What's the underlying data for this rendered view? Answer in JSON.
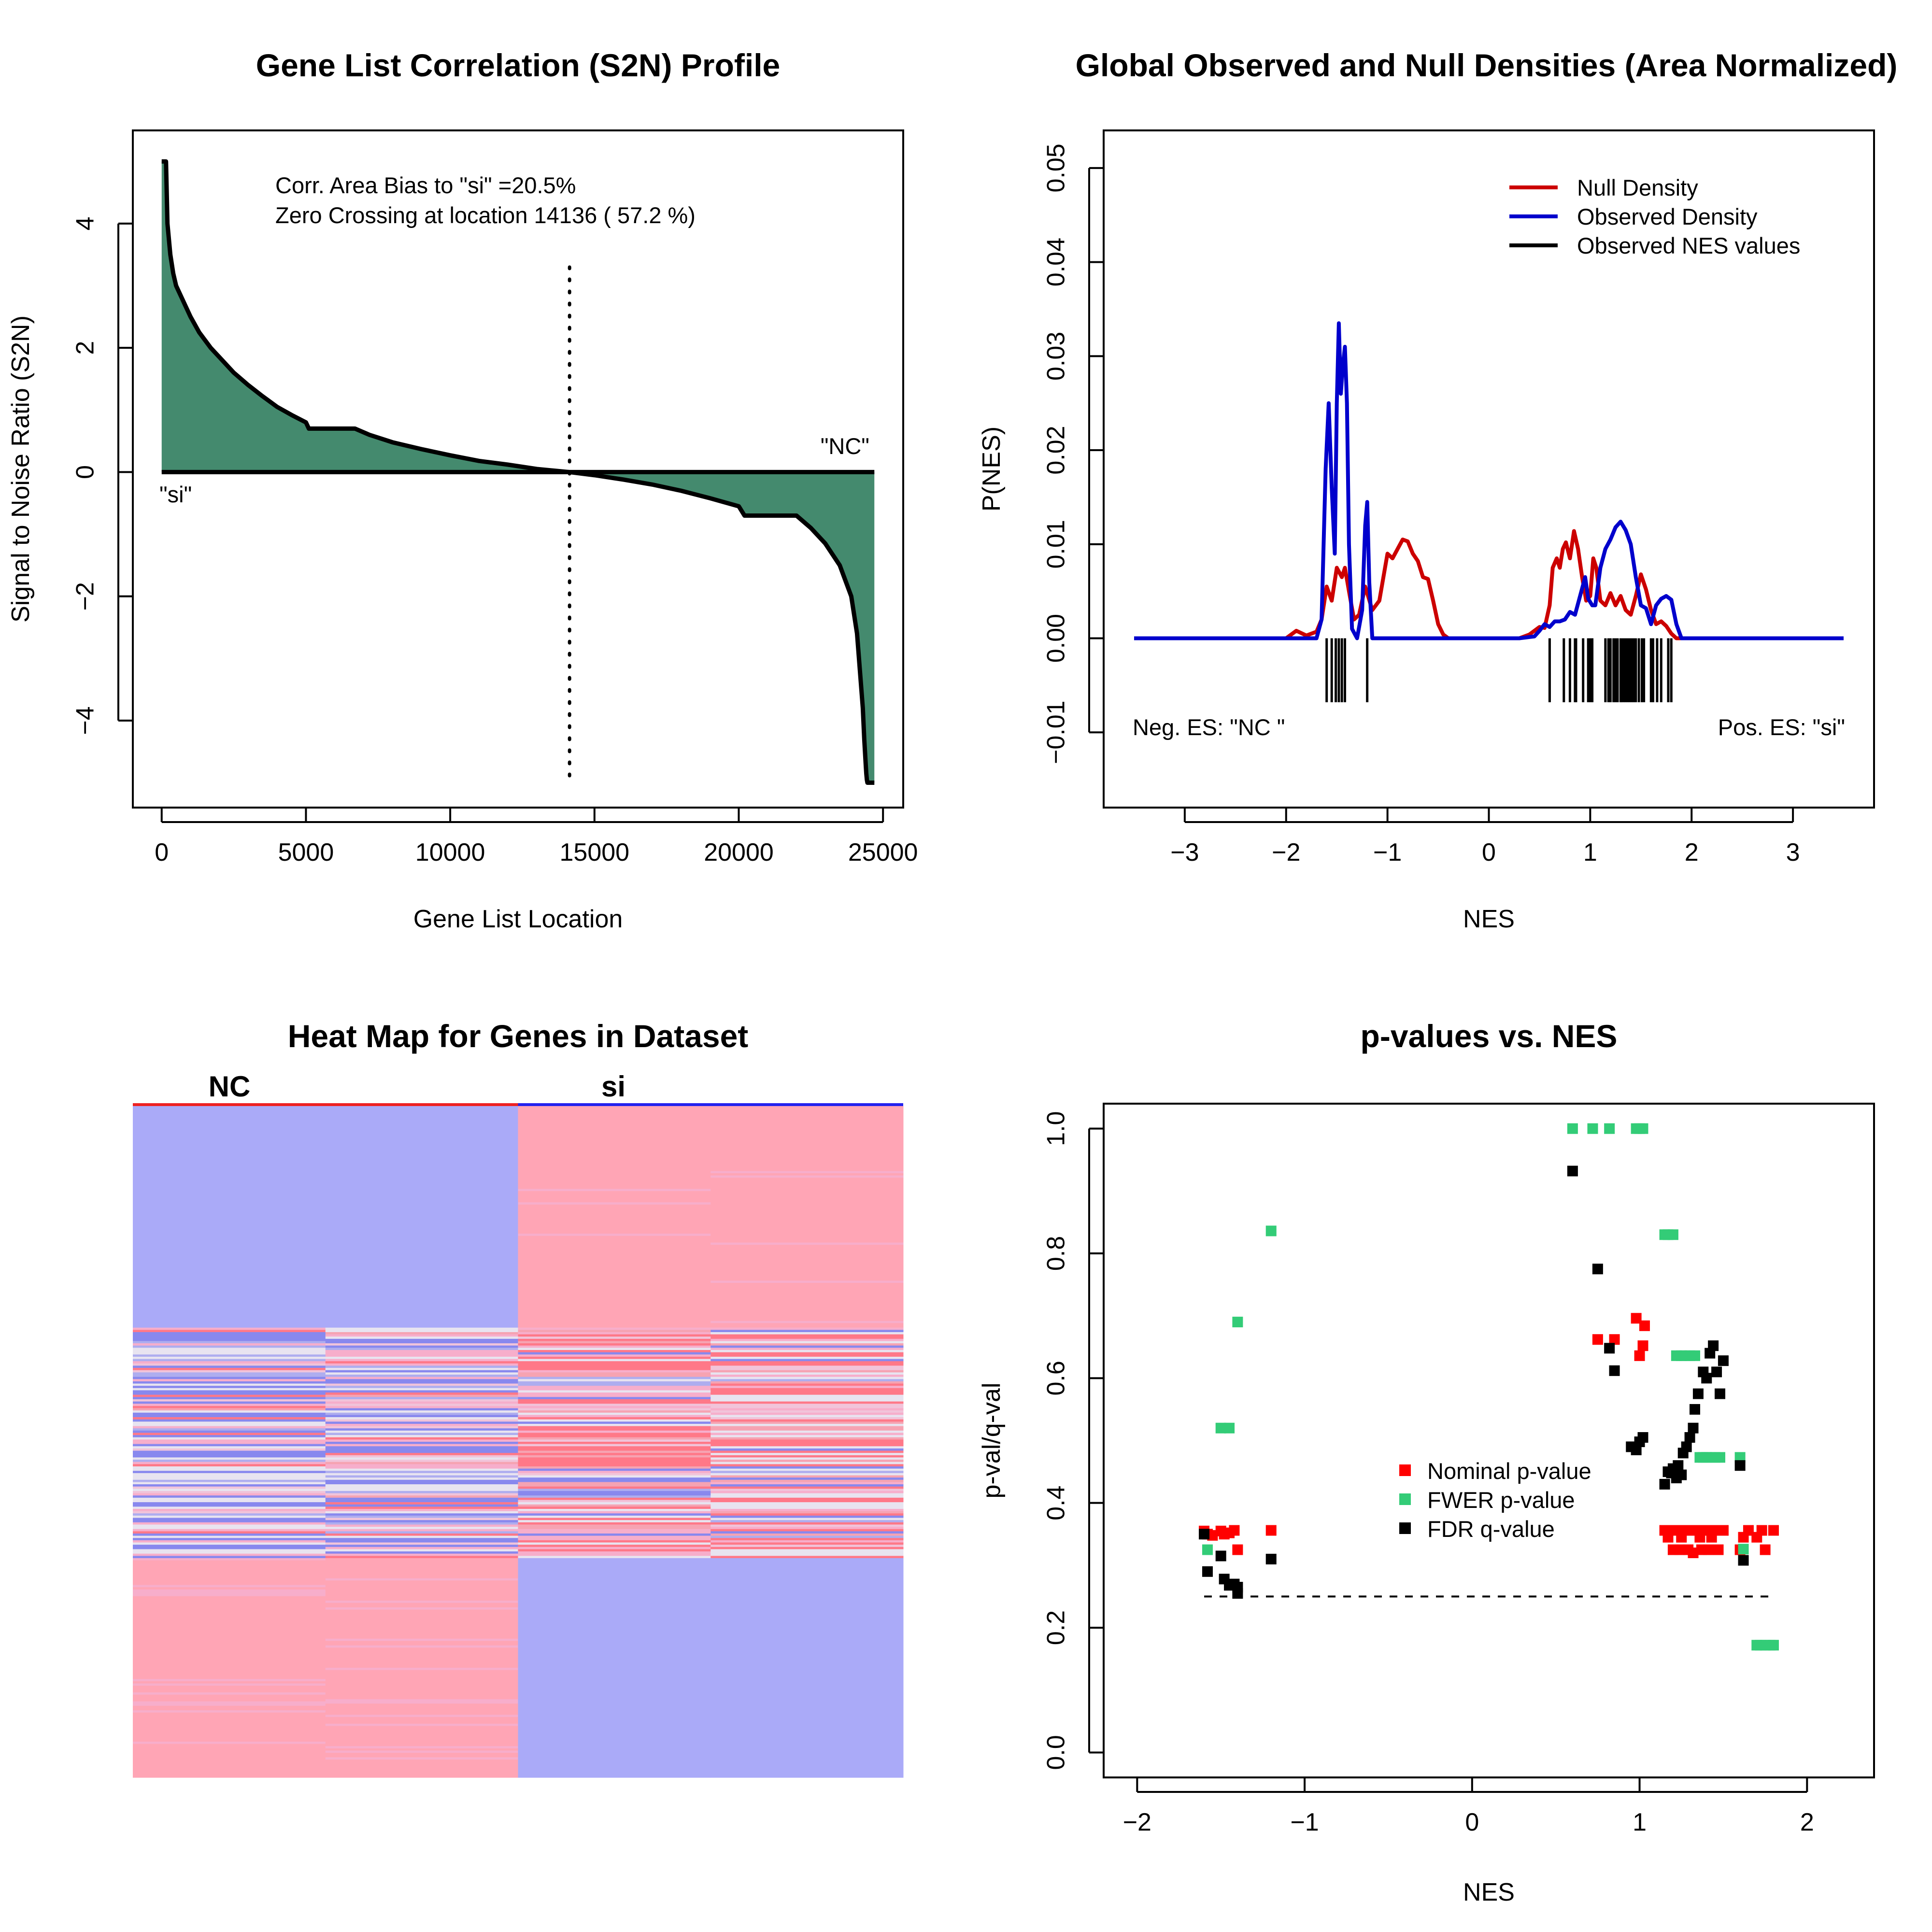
{
  "chart_data": [
    {
      "type": "area",
      "title": "Gene List Correlation (S2N) Profile",
      "xlabel": "Gene List Location",
      "ylabel": "Signal to Noise Ratio (S2N)",
      "xlim": [
        -1000,
        25700
      ],
      "ylim": [
        -5.4,
        5.5
      ],
      "xticks": [
        0,
        5000,
        10000,
        15000,
        20000,
        25000
      ],
      "xtick_labels": [
        "0",
        "5000",
        "10000",
        "15000",
        "20000",
        "25000"
      ],
      "yticks": [
        -4,
        -2,
        0,
        2,
        4
      ],
      "ytick_labels": [
        "−4",
        "−2",
        "0",
        "2",
        "4"
      ],
      "fill_color": "#448a6e",
      "x": [
        0,
        150,
        200,
        300,
        400,
        500,
        700,
        1000,
        1300,
        1700,
        2000,
        2500,
        3000,
        3500,
        4000,
        4500,
        5000,
        5100,
        6700,
        7200,
        8000,
        9000,
        10000,
        11000,
        12000,
        13000,
        14136,
        15000,
        16000,
        17000,
        18000,
        19000,
        20000,
        20200,
        22000,
        22500,
        23000,
        23500,
        23900,
        24100,
        24200,
        24300,
        24350,
        24400,
        24420,
        24440,
        24460,
        24480,
        24700
      ],
      "y": [
        5.0,
        5.0,
        4.0,
        3.5,
        3.2,
        3.0,
        2.8,
        2.5,
        2.25,
        2.0,
        1.85,
        1.6,
        1.4,
        1.22,
        1.05,
        0.92,
        0.8,
        0.7,
        0.7,
        0.6,
        0.48,
        0.37,
        0.27,
        0.18,
        0.12,
        0.05,
        0.0,
        -0.05,
        -0.12,
        -0.2,
        -0.3,
        -0.42,
        -0.55,
        -0.7,
        -0.7,
        -0.9,
        -1.15,
        -1.5,
        -2.0,
        -2.6,
        -3.2,
        -3.8,
        -4.3,
        -4.7,
        -4.85,
        -4.95,
        -5.0,
        -5.0,
        -5.0
      ],
      "zero_crossing": 14136,
      "dotted_line_top": 3.3,
      "dotted_line_bottom": -5.0,
      "annotations": [
        "Corr. Area Bias to \"si\" =20.5%",
        "Zero Crossing at location  14136  ( 57.2  %)"
      ],
      "label_left": "\"si\"",
      "label_right": "\"NC\""
    },
    {
      "type": "line",
      "title": "Global Observed and Null Densities (Area Normalized)",
      "xlabel": "NES",
      "ylabel": "P(NES)",
      "xlim": [
        -3.8,
        3.8
      ],
      "ylim": [
        -0.018,
        0.054
      ],
      "xticks": [
        -3,
        -2,
        -1,
        0,
        1,
        2,
        3
      ],
      "xtick_labels": [
        "−3",
        "−2",
        "−1",
        "0",
        "1",
        "2",
        "3"
      ],
      "yticks": [
        -0.01,
        0.0,
        0.01,
        0.02,
        0.03,
        0.04,
        0.05
      ],
      "ytick_labels": [
        "−0.01",
        "0.00",
        "0.01",
        "0.02",
        "0.03",
        "0.04",
        "0.05"
      ],
      "legend_position": "top-right",
      "series": [
        {
          "name": "Null Density",
          "color": "#cc0000",
          "x": [
            -3.5,
            -2.0,
            -1.9,
            -1.8,
            -1.7,
            -1.65,
            -1.6,
            -1.55,
            -1.5,
            -1.45,
            -1.42,
            -1.38,
            -1.33,
            -1.28,
            -1.22,
            -1.15,
            -1.08,
            -1.0,
            -0.95,
            -0.9,
            -0.85,
            -0.8,
            -0.75,
            -0.7,
            -0.65,
            -0.6,
            -0.55,
            -0.5,
            -0.45,
            -0.4,
            -0.35,
            -0.3,
            0.3,
            0.4,
            0.5,
            0.55,
            0.6,
            0.63,
            0.67,
            0.7,
            0.73,
            0.76,
            0.8,
            0.84,
            0.88,
            0.92,
            0.96,
            1.0,
            1.03,
            1.06,
            1.1,
            1.15,
            1.2,
            1.25,
            1.3,
            1.35,
            1.4,
            1.45,
            1.5,
            1.55,
            1.6,
            1.65,
            1.7,
            1.75,
            1.8,
            1.85,
            3.5
          ],
          "y": [
            0.0,
            0.0,
            0.0008,
            0.0003,
            0.0007,
            0.002,
            0.0055,
            0.004,
            0.0075,
            0.0065,
            0.0075,
            0.005,
            0.002,
            0.0025,
            0.0055,
            0.003,
            0.004,
            0.009,
            0.0085,
            0.0095,
            0.0105,
            0.0103,
            0.009,
            0.0082,
            0.0065,
            0.0063,
            0.004,
            0.0015,
            0.0004,
            0.0,
            0.0,
            0.0,
            0.0,
            0.0004,
            0.0012,
            0.0011,
            0.0035,
            0.0075,
            0.0085,
            0.0075,
            0.0095,
            0.0102,
            0.0085,
            0.0114,
            0.0095,
            0.0065,
            0.004,
            0.0045,
            0.0085,
            0.0075,
            0.004,
            0.0035,
            0.0048,
            0.0035,
            0.0045,
            0.003,
            0.0025,
            0.0045,
            0.0068,
            0.0052,
            0.003,
            0.0015,
            0.0018,
            0.0013,
            0.0005,
            0.0,
            0.0
          ]
        },
        {
          "name": "Observed Density",
          "color": "#0000cc",
          "x": [
            -3.5,
            -1.7,
            -1.65,
            -1.61,
            -1.58,
            -1.55,
            -1.52,
            -1.5,
            -1.48,
            -1.46,
            -1.44,
            -1.42,
            -1.4,
            -1.38,
            -1.35,
            -1.3,
            -1.25,
            -1.22,
            -1.2,
            -1.18,
            -1.15,
            -1.0,
            0.3,
            0.45,
            0.5,
            0.55,
            0.6,
            0.65,
            0.7,
            0.75,
            0.8,
            0.85,
            0.9,
            0.95,
            0.98,
            1.02,
            1.05,
            1.1,
            1.15,
            1.2,
            1.25,
            1.3,
            1.35,
            1.4,
            1.45,
            1.5,
            1.55,
            1.6,
            1.65,
            1.7,
            1.75,
            1.8,
            1.85,
            1.9,
            3.5
          ],
          "y": [
            0.0,
            0.0,
            0.002,
            0.018,
            0.025,
            0.016,
            0.009,
            0.025,
            0.0335,
            0.026,
            0.029,
            0.031,
            0.025,
            0.01,
            0.001,
            0.0,
            0.003,
            0.012,
            0.0145,
            0.006,
            0.0,
            0.0,
            0.0,
            0.0002,
            0.0008,
            0.0015,
            0.0012,
            0.0018,
            0.0018,
            0.002,
            0.0028,
            0.0025,
            0.0045,
            0.0065,
            0.0042,
            0.0035,
            0.0035,
            0.0075,
            0.0095,
            0.0105,
            0.0118,
            0.0124,
            0.0115,
            0.01,
            0.0065,
            0.0035,
            0.0032,
            0.0015,
            0.0035,
            0.0042,
            0.0045,
            0.0041,
            0.0015,
            0.0,
            0.0
          ]
        },
        {
          "name": "Observed NES values",
          "color": "#000000",
          "rug": [
            -1.6,
            -1.55,
            -1.51,
            -1.48,
            -1.45,
            -1.42,
            -1.2,
            0.6,
            0.74,
            0.8,
            0.85,
            0.86,
            0.93,
            0.98,
            1.0,
            1.02,
            1.15,
            1.18,
            1.2,
            1.23,
            1.25,
            1.27,
            1.3,
            1.31,
            1.33,
            1.35,
            1.37,
            1.39,
            1.41,
            1.43,
            1.45,
            1.48,
            1.51,
            1.53,
            1.6,
            1.62,
            1.66,
            1.7,
            1.77,
            1.8
          ],
          "rug_top": 0.0,
          "rug_bottom": -0.0068
        }
      ],
      "annotations": [
        "Neg. ES: \"NC \"",
        "Pos. ES: \"si\""
      ]
    },
    {
      "type": "heatmap",
      "title": "Heat Map for Genes in Dataset",
      "column_groups": [
        "NC",
        "si"
      ],
      "group_colors": [
        "#ee2222",
        "#2222ee"
      ],
      "columns": 4,
      "high_color": "#ff7788",
      "low_color": "#7777ee"
    },
    {
      "type": "scatter",
      "title": "p-values vs. NES",
      "xlabel": "NES",
      "ylabel": "p-val/q-val",
      "xlim": [
        -2.2,
        2.4
      ],
      "ylim": [
        -0.04,
        1.04
      ],
      "xticks": [
        -2,
        -1,
        0,
        1,
        2
      ],
      "xtick_labels": [
        "−2",
        "−1",
        "0",
        "1",
        "2"
      ],
      "yticks": [
        0.0,
        0.2,
        0.4,
        0.6,
        0.8,
        1.0
      ],
      "ytick_labels": [
        "0.0",
        "0.2",
        "0.4",
        "0.6",
        "0.8",
        "1.0"
      ],
      "threshold": 0.25,
      "threshold_range": [
        -1.6,
        1.8
      ],
      "legend_position": "center-right",
      "series": [
        {
          "name": "Nominal p-value",
          "color": "#ff0000",
          "x": [
            -1.6,
            -1.58,
            -1.55,
            -1.5,
            -1.48,
            -1.45,
            -1.42,
            -1.4,
            -1.2,
            0.75,
            0.85,
            0.98,
            1.0,
            1.02,
            1.03,
            1.15,
            1.17,
            1.19,
            1.2,
            1.22,
            1.24,
            1.25,
            1.27,
            1.29,
            1.3,
            1.32,
            1.34,
            1.36,
            1.37,
            1.39,
            1.41,
            1.43,
            1.45,
            1.47,
            1.5,
            1.6,
            1.62,
            1.65,
            1.7,
            1.73,
            1.75,
            1.8
          ],
          "y": [
            0.355,
            0.35,
            0.348,
            0.355,
            0.35,
            0.352,
            0.356,
            0.325,
            0.356,
            0.662,
            0.662,
            0.696,
            0.636,
            0.652,
            0.684,
            0.356,
            0.345,
            0.356,
            0.325,
            0.356,
            0.325,
            0.345,
            0.356,
            0.325,
            0.356,
            0.32,
            0.356,
            0.345,
            0.325,
            0.356,
            0.325,
            0.345,
            0.356,
            0.325,
            0.356,
            0.325,
            0.345,
            0.356,
            0.345,
            0.356,
            0.325,
            0.356
          ]
        },
        {
          "name": "FWER p-value",
          "color": "#33cc77",
          "x": [
            -1.58,
            -1.5,
            -1.45,
            -1.4,
            -1.2,
            0.6,
            0.72,
            0.82,
            0.98,
            1.0,
            1.02,
            1.15,
            1.17,
            1.2,
            1.22,
            1.25,
            1.27,
            1.3,
            1.33,
            1.36,
            1.38,
            1.4,
            1.42,
            1.45,
            1.48,
            1.6,
            1.62,
            1.7,
            1.72,
            1.75,
            1.78,
            1.8
          ],
          "y": [
            0.325,
            0.52,
            0.52,
            0.69,
            0.836,
            1.0,
            1.0,
            1.0,
            1.0,
            1.0,
            1.0,
            0.83,
            0.83,
            0.83,
            0.636,
            0.636,
            0.636,
            0.636,
            0.636,
            0.473,
            0.473,
            0.473,
            0.473,
            0.473,
            0.473,
            0.473,
            0.326,
            0.172,
            0.172,
            0.172,
            0.172,
            0.172
          ]
        },
        {
          "name": "FDR q-value",
          "color": "#000000",
          "x": [
            -1.6,
            -1.58,
            -1.5,
            -1.48,
            -1.45,
            -1.42,
            -1.4,
            -1.4,
            -1.2,
            0.6,
            0.75,
            0.82,
            0.85,
            0.95,
            0.98,
            1.0,
            1.02,
            1.15,
            1.17,
            1.19,
            1.2,
            1.22,
            1.23,
            1.25,
            1.26,
            1.28,
            1.3,
            1.32,
            1.33,
            1.35,
            1.38,
            1.4,
            1.42,
            1.44,
            1.46,
            1.48,
            1.5,
            1.6,
            1.62
          ],
          "y": [
            0.35,
            0.29,
            0.315,
            0.278,
            0.268,
            0.27,
            0.255,
            0.265,
            0.31,
            0.932,
            0.775,
            0.648,
            0.612,
            0.49,
            0.485,
            0.498,
            0.505,
            0.43,
            0.45,
            0.448,
            0.455,
            0.44,
            0.46,
            0.445,
            0.48,
            0.49,
            0.505,
            0.52,
            0.55,
            0.575,
            0.61,
            0.6,
            0.64,
            0.652,
            0.61,
            0.575,
            0.628,
            0.46,
            0.308
          ]
        }
      ]
    }
  ]
}
